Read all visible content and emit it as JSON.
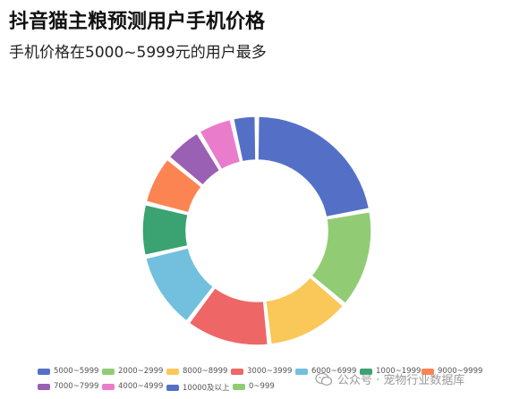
{
  "chart_data": {
    "type": "pie",
    "title": "抖音猫主粮预测用户手机价格",
    "subtitle": "手机价格在5000~5999元的用户最多",
    "donut": true,
    "legend_position": "bottom",
    "slices": [
      {
        "label": "5000~5999",
        "value": 22,
        "color": "#5470c6"
      },
      {
        "label": "2000~2999",
        "value": 14,
        "color": "#91cc75"
      },
      {
        "label": "8000~8999",
        "value": 12,
        "color": "#fac858"
      },
      {
        "label": "3000~3999",
        "value": 12,
        "color": "#ee6666"
      },
      {
        "label": "6000~6999",
        "value": 11,
        "color": "#73c0de"
      },
      {
        "label": "1000~1999",
        "value": 7.5,
        "color": "#3ba272"
      },
      {
        "label": "9000~9999",
        "value": 7,
        "color": "#fc8452"
      },
      {
        "label": "7000~7999",
        "value": 5.5,
        "color": "#9a60b4"
      },
      {
        "label": "4000~4999",
        "value": 5,
        "color": "#ea7ccc"
      },
      {
        "label": "10000及以上",
        "value": 3.5,
        "color": "#5470c6"
      },
      {
        "label": "0~999",
        "value": 0,
        "color": "#91cc75"
      }
    ]
  },
  "watermark": {
    "text": "公众号 · 宠物行业数据库",
    "icon": "wechat-icon"
  }
}
